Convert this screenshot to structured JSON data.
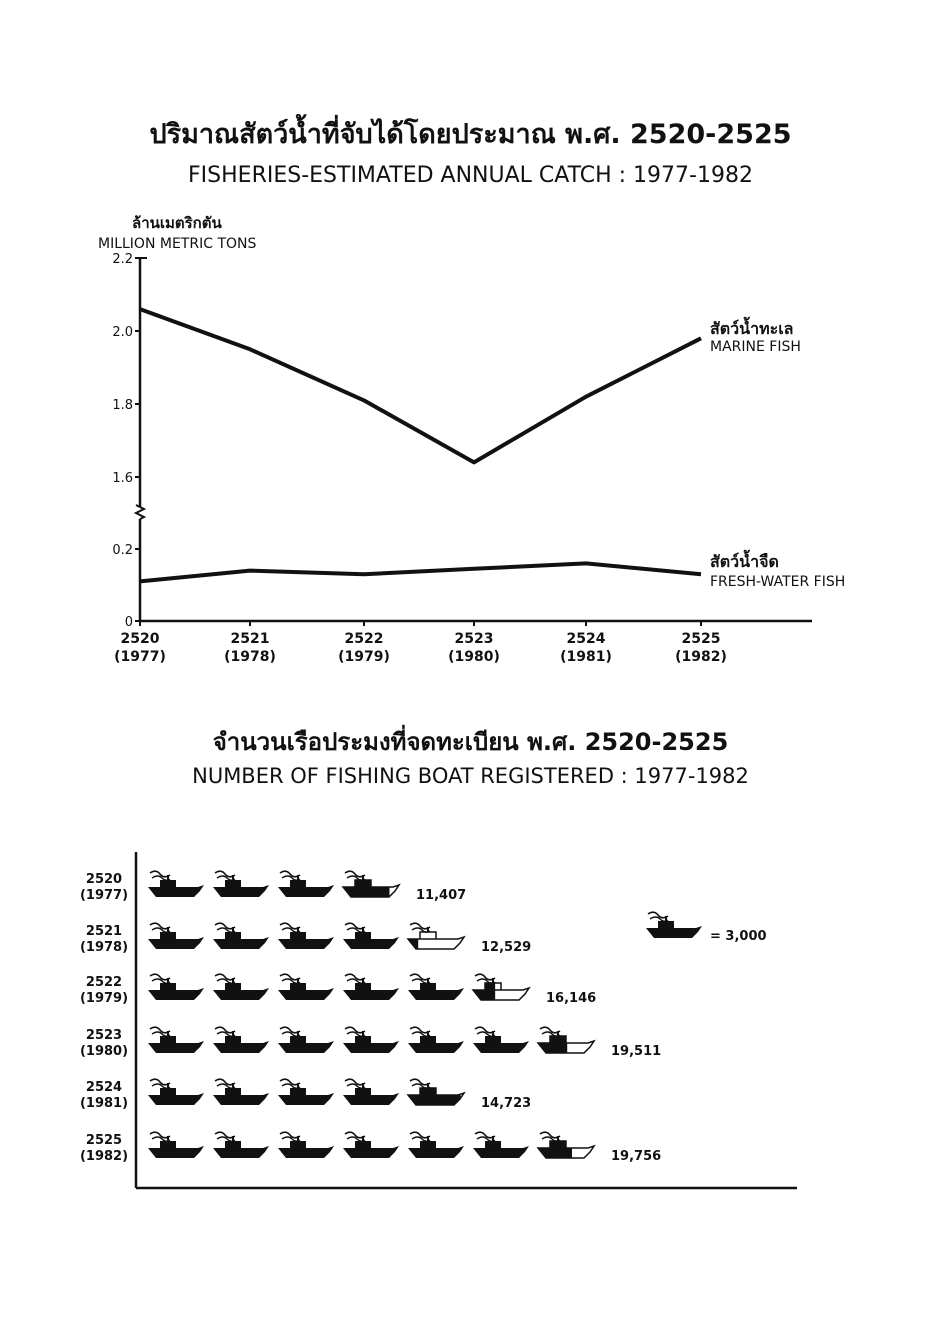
{
  "titles": {
    "chart1_thai": "ปริมาณสัตว์น้ำที่จับได้โดยประมาณ พ.ศ. 2520-2525",
    "chart1_en": "FISHERIES-ESTIMATED ANNUAL CATCH : 1977-1982",
    "chart2_thai": "จำนวนเรือประมงที่จดทะเบียน พ.ศ. 2520-2525",
    "chart2_en": "NUMBER OF FISHING BOAT REGISTERED : 1977-1982"
  },
  "chart_data": [
    {
      "type": "line",
      "title": "FISHERIES-ESTIMATED ANNUAL CATCH : 1977-1982",
      "ylabel_thai": "ล้านเมตริกตัน",
      "ylabel": "MILLION METRIC TONS",
      "x_ticks": [
        {
          "year": "2520",
          "ce": "(1977)"
        },
        {
          "year": "2521",
          "ce": "(1978)"
        },
        {
          "year": "2522",
          "ce": "(1979)"
        },
        {
          "year": "2523",
          "ce": "(1980)"
        },
        {
          "year": "2524",
          "ce": "(1981)"
        },
        {
          "year": "2525",
          "ce": "(1982)"
        }
      ],
      "y_ticks": [
        "0",
        "0.2",
        "1.6",
        "1.8",
        "2.0",
        "2.2"
      ],
      "y_axis_break": true,
      "series": [
        {
          "name_thai": "สัตว์น้ำทะเล",
          "name": "MARINE FISH",
          "values": [
            2.06,
            1.95,
            1.81,
            1.64,
            1.82,
            1.98
          ]
        },
        {
          "name_thai": "สัตว์น้ำจืด",
          "name": "FRESH-WATER FISH",
          "values": [
            0.11,
            0.14,
            0.13,
            0.145,
            0.16,
            0.13
          ]
        }
      ]
    },
    {
      "type": "pictogram",
      "title": "NUMBER OF FISHING BOAT REGISTERED : 1977-1982",
      "unit_value": 3000,
      "legend_label": "= 3,000",
      "categories": [
        {
          "year": "2520",
          "ce": "(1977)"
        },
        {
          "year": "2521",
          "ce": "(1978)"
        },
        {
          "year": "2522",
          "ce": "(1979)"
        },
        {
          "year": "2523",
          "ce": "(1980)"
        },
        {
          "year": "2524",
          "ce": "(1981)"
        },
        {
          "year": "2525",
          "ce": "(1982)"
        }
      ],
      "values": [
        11407,
        12529,
        16146,
        19511,
        14723,
        19756
      ],
      "value_labels": [
        "11,407",
        "12,529",
        "16,146",
        "19,511",
        "14,723",
        "19,756"
      ]
    }
  ]
}
